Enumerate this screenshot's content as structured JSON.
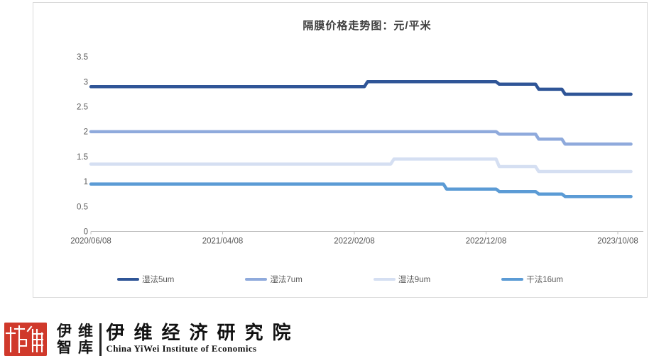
{
  "chart_data": {
    "type": "line",
    "title": "隔膜价格走势图：元/平米",
    "xlabel": "",
    "ylabel": "",
    "x_tick_labels": [
      "2020/06/08",
      "2021/04/08",
      "2022/02/08",
      "2022/12/08",
      "2023/10/08"
    ],
    "x_tick_months": [
      0,
      10,
      20,
      30,
      40
    ],
    "x_interval": "monthly",
    "y_tick_labels": [
      "3.5",
      "3",
      "2.5",
      "2",
      "1.5",
      "1",
      "0.5",
      "0"
    ],
    "y_tick_values": [
      3.5,
      3,
      2.5,
      2,
      1.5,
      1,
      0.5,
      0
    ],
    "ylim": [
      0,
      3.5
    ],
    "grid": false,
    "legend_position": "bottom",
    "axis_color": "#BFBFBF",
    "label_color": "#595959",
    "series": [
      {
        "name": "湿法5um",
        "color": "#2F5597",
        "values": [
          2.9,
          2.9,
          2.9,
          2.9,
          2.9,
          2.9,
          2.9,
          2.9,
          2.9,
          2.9,
          2.9,
          2.9,
          2.9,
          2.9,
          2.9,
          2.9,
          2.9,
          2.9,
          2.9,
          2.9,
          2.9,
          3,
          3,
          3,
          3,
          3,
          3,
          3,
          3,
          3,
          3,
          2.95,
          2.95,
          2.95,
          2.85,
          2.85,
          2.75,
          2.75,
          2.75,
          2.75,
          2.75,
          2.75
        ]
      },
      {
        "name": "湿法7um",
        "color": "#8FAADC",
        "values": [
          2,
          2,
          2,
          2,
          2,
          2,
          2,
          2,
          2,
          2,
          2,
          2,
          2,
          2,
          2,
          2,
          2,
          2,
          2,
          2,
          2,
          2,
          2,
          2,
          2,
          2,
          2,
          2,
          2,
          2,
          2,
          1.95,
          1.95,
          1.95,
          1.85,
          1.85,
          1.75,
          1.75,
          1.75,
          1.75,
          1.75,
          1.75
        ]
      },
      {
        "name": "湿法9um",
        "color": "#D5DFF2",
        "values": [
          1.35,
          1.35,
          1.35,
          1.35,
          1.35,
          1.35,
          1.35,
          1.35,
          1.35,
          1.35,
          1.35,
          1.35,
          1.35,
          1.35,
          1.35,
          1.35,
          1.35,
          1.35,
          1.35,
          1.35,
          1.35,
          1.35,
          1.35,
          1.45,
          1.45,
          1.45,
          1.45,
          1.45,
          1.45,
          1.45,
          1.45,
          1.3,
          1.3,
          1.3,
          1.2,
          1.2,
          1.2,
          1.2,
          1.2,
          1.2,
          1.2,
          1.2
        ]
      },
      {
        "name": "干法16um",
        "color": "#5B9BD5",
        "values": [
          0.95,
          0.95,
          0.95,
          0.95,
          0.95,
          0.95,
          0.95,
          0.95,
          0.95,
          0.95,
          0.95,
          0.95,
          0.95,
          0.95,
          0.95,
          0.95,
          0.95,
          0.95,
          0.95,
          0.95,
          0.95,
          0.95,
          0.95,
          0.95,
          0.95,
          0.95,
          0.95,
          0.85,
          0.85,
          0.85,
          0.85,
          0.8,
          0.8,
          0.8,
          0.75,
          0.75,
          0.7,
          0.7,
          0.7,
          0.7,
          0.7,
          0.7
        ]
      }
    ]
  },
  "footer": {
    "logo_cn_line1": "伊维",
    "logo_cn_line2": "智库",
    "org_cn": "伊维经济研究院",
    "org_en": "China YiWei Institute of Economics",
    "brand_red": "#D0392B"
  }
}
